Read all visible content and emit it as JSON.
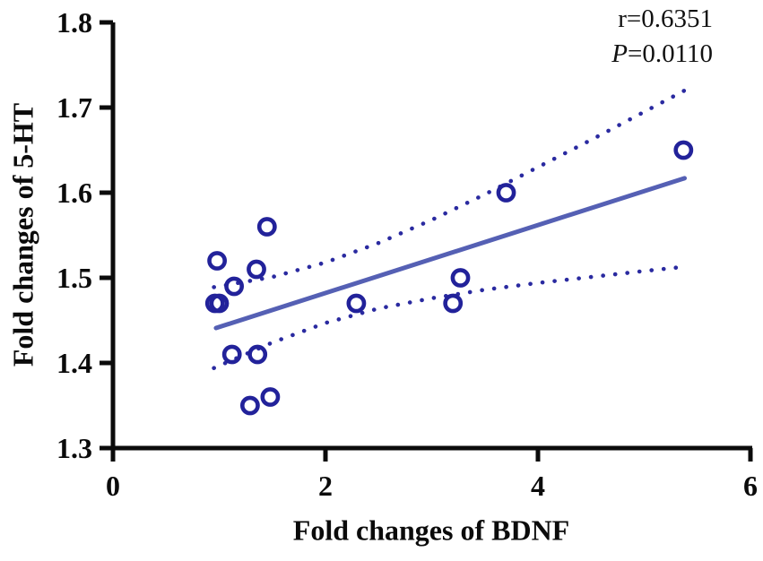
{
  "chart_data": {
    "type": "scatter",
    "title": "",
    "xlabel": "Fold changes of BDNF",
    "ylabel": "Fold changes of 5-HT",
    "xlim": [
      0,
      6
    ],
    "ylim": [
      1.3,
      1.8
    ],
    "grid": false,
    "xticks": {
      "values": [
        0,
        2,
        4,
        6
      ],
      "labels": [
        "0",
        "2",
        "4",
        "6"
      ]
    },
    "yticks": {
      "values": [
        1.3,
        1.4,
        1.5,
        1.6,
        1.7,
        1.8
      ],
      "labels": [
        "1.3",
        "1.4",
        "1.5",
        "1.6",
        "1.7",
        "1.8"
      ]
    },
    "annotation": {
      "r_text": "r=0.6351",
      "p_symbol": "P",
      "p_rest": "=0.0110"
    },
    "points": [
      [
        0.98,
        1.52
      ],
      [
        1.45,
        1.56
      ],
      [
        1.35,
        1.51
      ],
      [
        1.14,
        1.49
      ],
      [
        0.96,
        1.47
      ],
      [
        1.0,
        1.47
      ],
      [
        2.29,
        1.47
      ],
      [
        3.2,
        1.47
      ],
      [
        3.27,
        1.5
      ],
      [
        1.12,
        1.41
      ],
      [
        1.36,
        1.41
      ],
      [
        1.29,
        1.35
      ],
      [
        1.48,
        1.36
      ],
      [
        3.7,
        1.6
      ],
      [
        5.37,
        1.65
      ]
    ],
    "regression_line": {
      "x1": 0.97,
      "y1": 1.441,
      "x2": 5.38,
      "y2": 1.617
    },
    "ci_upper": [
      [
        0.95,
        1.489
      ],
      [
        1.5,
        1.501
      ],
      [
        2.0,
        1.518
      ],
      [
        2.5,
        1.541
      ],
      [
        3.0,
        1.568
      ],
      [
        3.5,
        1.598
      ],
      [
        4.0,
        1.63
      ],
      [
        4.5,
        1.662
      ],
      [
        5.0,
        1.695
      ],
      [
        5.38,
        1.72
      ]
    ],
    "ci_lower": [
      [
        0.95,
        1.394
      ],
      [
        1.5,
        1.424
      ],
      [
        2.0,
        1.447
      ],
      [
        2.5,
        1.464
      ],
      [
        3.0,
        1.476
      ],
      [
        3.5,
        1.486
      ],
      [
        4.0,
        1.494
      ],
      [
        4.5,
        1.501
      ],
      [
        5.0,
        1.508
      ],
      [
        5.38,
        1.513
      ]
    ],
    "colors": {
      "marker": "#22229a",
      "band": "#2a2aa0",
      "line": "#5560b4",
      "axis": "#0b0b0b"
    }
  }
}
